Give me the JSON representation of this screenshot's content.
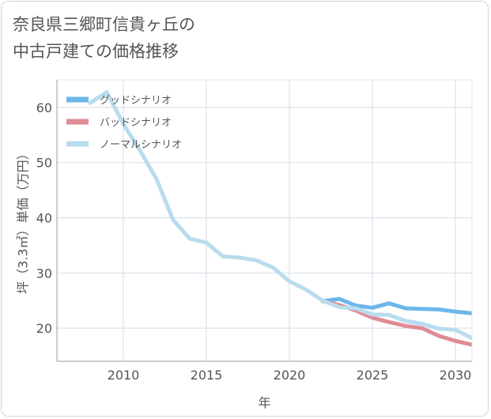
{
  "title": {
    "line1": "奈良県三郷町信貴ヶ丘の",
    "line2": "中古戸建ての価格推移"
  },
  "chart_data": {
    "type": "line",
    "xlabel": "年",
    "ylabel": "坪（3.3㎡）単価（万円）",
    "xlim": [
      2006,
      2031
    ],
    "ylim": [
      14,
      65
    ],
    "xticks": [
      2010,
      2015,
      2020,
      2025,
      2030
    ],
    "yticks": [
      20,
      30,
      40,
      50,
      60
    ],
    "grid": true,
    "legend_position": "top-left",
    "series": [
      {
        "name": "グッドシナリオ",
        "color": "#6cb6ea",
        "x": [
          2022,
          2023,
          2024,
          2025,
          2026,
          2027,
          2028,
          2029,
          2030,
          2031
        ],
        "values": [
          24.9,
          25.3,
          24.1,
          23.7,
          24.5,
          23.6,
          23.5,
          23.4,
          23.0,
          22.7
        ]
      },
      {
        "name": "バッドシナリオ",
        "color": "#df8c95",
        "x": [
          2022,
          2023,
          2024,
          2025,
          2026,
          2027,
          2028,
          2029,
          2030,
          2031
        ],
        "values": [
          24.9,
          24.2,
          23.2,
          21.9,
          21.1,
          20.4,
          20.0,
          18.6,
          17.7,
          17.0
        ]
      },
      {
        "name": "ノーマルシナリオ",
        "color": "#b9dcee",
        "x": [
          2008,
          2009,
          2010,
          2011,
          2012,
          2013,
          2014,
          2015,
          2016,
          2017,
          2018,
          2019,
          2020,
          2021,
          2022,
          2023,
          2024,
          2025,
          2026,
          2027,
          2028,
          2029,
          2030,
          2031
        ],
        "values": [
          60.8,
          62.8,
          57.0,
          52.2,
          47.0,
          39.6,
          36.2,
          35.5,
          33.0,
          32.8,
          32.3,
          31.0,
          28.5,
          27.0,
          25.0,
          23.8,
          23.6,
          22.5,
          22.4,
          21.3,
          20.8,
          19.9,
          19.7,
          18.2
        ]
      }
    ]
  }
}
